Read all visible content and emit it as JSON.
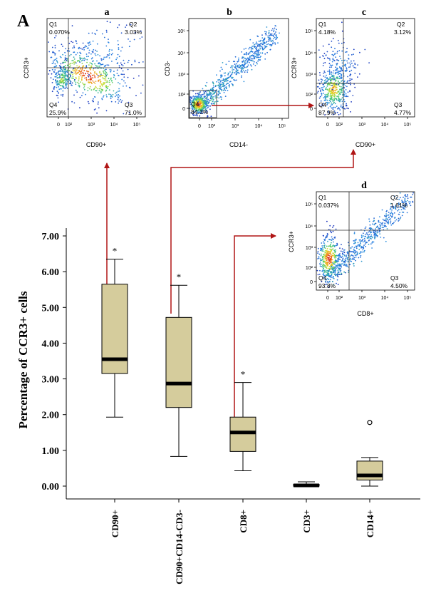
{
  "figure": {
    "panel_letter": "A",
    "colors": {
      "box_fill": "#d5cc9c",
      "arrow": "#b01515",
      "gate": "#2a2a2a",
      "axis": "#000000"
    }
  },
  "chart_data": [
    {
      "id": "boxplot",
      "type": "box",
      "ylabel": "Percentage of CCR3+ cells",
      "ylim": [
        0,
        7.0
      ],
      "y_ticks": [
        "0.00",
        "1.00",
        "2.00",
        "3.00",
        "4.00",
        "5.00",
        "6.00",
        "7.00"
      ],
      "categories": [
        "CD90+",
        "CD90+CD14-CD3-",
        "CD8+",
        "CD3+",
        "CD14+"
      ],
      "boxes": [
        {
          "category": "CD90+",
          "min": 1.93,
          "q1": 3.15,
          "median": 3.55,
          "q3": 5.65,
          "max": 6.35,
          "significance": "*",
          "outliers": []
        },
        {
          "category": "CD90+CD14-CD3-",
          "min": 0.83,
          "q1": 2.2,
          "median": 2.87,
          "q3": 4.72,
          "max": 5.62,
          "significance": "*",
          "outliers": []
        },
        {
          "category": "CD8+",
          "min": 0.43,
          "q1": 0.97,
          "median": 1.5,
          "q3": 1.93,
          "max": 2.9,
          "significance": "*",
          "outliers": []
        },
        {
          "category": "CD3+",
          "min": 0.0,
          "q1": 0.0,
          "median": 0.02,
          "q3": 0.05,
          "max": 0.12,
          "significance": "",
          "outliers": []
        },
        {
          "category": "CD14+",
          "min": 0.0,
          "q1": 0.17,
          "median": 0.3,
          "q3": 0.7,
          "max": 0.8,
          "significance": "",
          "outliers": [
            1.78
          ]
        }
      ]
    },
    {
      "id": "flow-a",
      "type": "scatter",
      "panel": "a",
      "xlabel": "CD90+",
      "ylabel": "CCR3+",
      "quadrants": {
        "Q1": "0.070%",
        "Q2": "3.03%",
        "Q3": "71.0%",
        "Q4": "25.9%"
      },
      "q_labels": [
        "Q1",
        "Q2",
        "Q3",
        "Q4"
      ],
      "x_ticks": [
        "0",
        "10²",
        "10³",
        "10⁴",
        "10⁵"
      ],
      "y_ticks": [
        "0",
        "10²",
        "10³",
        "10⁴",
        "10⁵"
      ],
      "show_x_ticks": true,
      "show_y_ticks": false
    },
    {
      "id": "flow-b",
      "type": "scatter",
      "panel": "b",
      "xlabel": "CD14-",
      "ylabel": "CD3-",
      "quadrants": {
        "Q4": "84.3%"
      },
      "q_labels": [
        "Q4"
      ],
      "x_ticks": [
        "0",
        "10²",
        "10³",
        "10⁴",
        "10⁵"
      ],
      "y_ticks": [
        "0",
        "10²",
        "10³",
        "10⁴",
        "10⁵"
      ],
      "show_x_ticks": true,
      "show_y_ticks": true
    },
    {
      "id": "flow-c",
      "type": "scatter",
      "panel": "c",
      "xlabel": "CD90+",
      "ylabel": "CCR3+",
      "quadrants": {
        "Q1": "4.18%",
        "Q2": "3.12%",
        "Q3": "4.77%",
        "Q4": "87.9%"
      },
      "q_labels": [
        "Q1",
        "Q2",
        "Q3",
        "Q4"
      ],
      "x_ticks": [
        "0",
        "10²",
        "10³",
        "10⁴",
        "10⁵"
      ],
      "y_ticks": [
        "0",
        "10²",
        "10³",
        "10⁴",
        "10⁵"
      ],
      "show_x_ticks": true,
      "show_y_ticks": true
    },
    {
      "id": "flow-d",
      "type": "scatter",
      "panel": "d",
      "xlabel": "CD8+",
      "ylabel": "CCR3+",
      "quadrants": {
        "Q1": "0.037%",
        "Q2": "1.61%",
        "Q3": "4.50%",
        "Q4": "93.8%"
      },
      "q_labels": [
        "Q1",
        "Q2",
        "Q3",
        "Q4"
      ],
      "x_ticks": [
        "0",
        "10²",
        "10³",
        "10⁴",
        "10⁵"
      ],
      "y_ticks": [
        "0",
        "10²",
        "10³",
        "10⁴",
        "10⁵"
      ],
      "show_x_ticks": true,
      "show_y_ticks": true
    }
  ]
}
